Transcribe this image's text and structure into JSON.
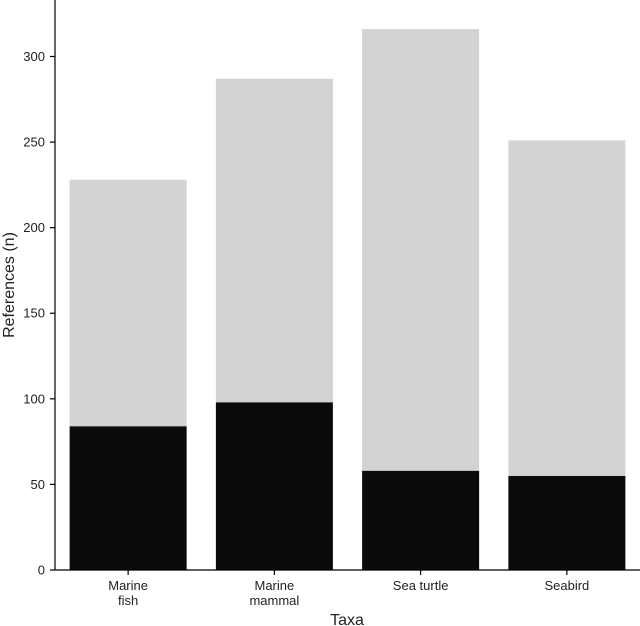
{
  "chart_data": {
    "type": "bar",
    "stacked": true,
    "categories": [
      [
        "Marine",
        "fish"
      ],
      [
        "Marine",
        "mammal"
      ],
      [
        "Sea turtle"
      ],
      [
        "Seabird"
      ]
    ],
    "series": [
      {
        "values": [
          84,
          98,
          58,
          55
        ],
        "color": "#0a0a0a"
      },
      {
        "values": [
          144,
          189,
          258,
          196
        ],
        "color": "#d3d3d3"
      }
    ],
    "totals": [
      228,
      287,
      316,
      251
    ],
    "xlabel": "Taxa",
    "ylabel": "References (n)",
    "ylim": [
      0,
      333
    ],
    "yticks": [
      0,
      50,
      100,
      150,
      200,
      250,
      300
    ],
    "grid": false,
    "legend": "none"
  }
}
